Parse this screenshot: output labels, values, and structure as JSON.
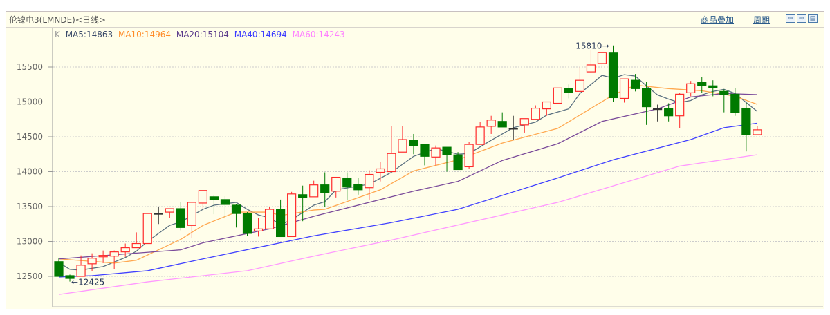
{
  "window": {
    "title": "伦镍电3(LMNDE)<日线>",
    "overlay_link": "商品叠加",
    "period_link": "周期",
    "nav_buttons": [
      {
        "icon": "arrow-left-icon",
        "glyph": "⇦"
      },
      {
        "icon": "arrow-right-icon",
        "glyph": "⇨"
      },
      {
        "icon": "layout-icon",
        "glyph": "▤"
      }
    ]
  },
  "legend": {
    "k_label": "K",
    "items": [
      {
        "label": "MA5:14863",
        "color": "#3a4a6a"
      },
      {
        "label": "MA10:14964",
        "color": "#ff8c28"
      },
      {
        "label": "MA20:15104",
        "color": "#5a3a8a"
      },
      {
        "label": "MA40:14694",
        "color": "#3a3aff"
      },
      {
        "label": "MA60:14243",
        "color": "#ff80ff"
      }
    ]
  },
  "chart_data": {
    "type": "candlestick",
    "title": "",
    "ylim": [
      12150,
      15850
    ],
    "yticks": [
      12500,
      13000,
      13500,
      14000,
      14500,
      15000,
      15500
    ],
    "grid": true,
    "colors": {
      "up": "#ff2a2a",
      "down": "#007a00",
      "flat": "#333333"
    },
    "candles_ohlc": [
      [
        12710,
        12760,
        12500,
        12500
      ],
      [
        12510,
        12525,
        12425,
        12470
      ],
      [
        12500,
        12800,
        12500,
        12660
      ],
      [
        12680,
        12830,
        12570,
        12760
      ],
      [
        12780,
        12870,
        12690,
        12800
      ],
      [
        12790,
        12870,
        12600,
        12850
      ],
      [
        12850,
        12970,
        12780,
        12910
      ],
      [
        12910,
        13130,
        12910,
        12970
      ],
      [
        12970,
        13400,
        12970,
        13400
      ],
      [
        13400,
        13490,
        13250,
        13400
      ],
      [
        13420,
        13470,
        13340,
        13470
      ],
      [
        13470,
        13560,
        13160,
        13200
      ],
      [
        13230,
        13560,
        13050,
        13560
      ],
      [
        13550,
        13730,
        13470,
        13730
      ],
      [
        13640,
        13660,
        13390,
        13600
      ],
      [
        13600,
        13650,
        13330,
        13530
      ],
      [
        13520,
        13530,
        13200,
        13400
      ],
      [
        13400,
        13420,
        13080,
        13115
      ],
      [
        13150,
        13340,
        13070,
        13180
      ],
      [
        13180,
        13490,
        13180,
        13460
      ],
      [
        13460,
        13600,
        13070,
        13070
      ],
      [
        13070,
        13710,
        13070,
        13680
      ],
      [
        13670,
        13800,
        13290,
        13630
      ],
      [
        13640,
        13870,
        13640,
        13810
      ],
      [
        13810,
        13990,
        13500,
        13700
      ],
      [
        13720,
        13920,
        13630,
        13920
      ],
      [
        13910,
        13990,
        13590,
        13780
      ],
      [
        13820,
        13910,
        13670,
        13740
      ],
      [
        13770,
        14020,
        13600,
        13960
      ],
      [
        13990,
        14140,
        13860,
        14040
      ],
      [
        14000,
        14650,
        14000,
        14260
      ],
      [
        14280,
        14650,
        14280,
        14460
      ],
      [
        14450,
        14540,
        14250,
        14370
      ],
      [
        14390,
        14390,
        14090,
        14220
      ],
      [
        14210,
        14375,
        14090,
        14340
      ],
      [
        14350,
        14350,
        14000,
        14240
      ],
      [
        14240,
        14280,
        14030,
        14030
      ],
      [
        14070,
        14430,
        14040,
        14390
      ],
      [
        14390,
        14710,
        14390,
        14640
      ],
      [
        14650,
        14800,
        14540,
        14740
      ],
      [
        14720,
        14850,
        14640,
        14640
      ],
      [
        14620,
        14800,
        14460,
        14620
      ],
      [
        14670,
        14760,
        14560,
        14760
      ],
      [
        14750,
        14950,
        14750,
        14910
      ],
      [
        14900,
        15000,
        14800,
        15000
      ],
      [
        14980,
        15200,
        14980,
        15200
      ],
      [
        15190,
        15250,
        15050,
        15130
      ],
      [
        15150,
        15500,
        15150,
        15310
      ],
      [
        15430,
        15740,
        15420,
        15530
      ],
      [
        15550,
        15710,
        15480,
        15710
      ],
      [
        15710,
        15810,
        15000,
        15060
      ],
      [
        15050,
        15330,
        14990,
        15330
      ],
      [
        15310,
        15400,
        15150,
        15190
      ],
      [
        15190,
        15290,
        14670,
        14930
      ],
      [
        14900,
        14960,
        14720,
        14900
      ],
      [
        14900,
        14980,
        14720,
        14800
      ],
      [
        14800,
        15130,
        14620,
        15110
      ],
      [
        15130,
        15300,
        15080,
        15260
      ],
      [
        15280,
        15360,
        15130,
        15230
      ],
      [
        15230,
        15310,
        15080,
        15200
      ],
      [
        15150,
        15180,
        14850,
        15100
      ],
      [
        15110,
        15200,
        14800,
        14850
      ],
      [
        14910,
        14990,
        14290,
        14530
      ],
      [
        14530,
        14650,
        14530,
        14600
      ]
    ],
    "moving_averages": [
      {
        "name": "MA5",
        "color": "#5a7080",
        "points": [
          [
            0,
            12700
          ],
          [
            1,
            12600
          ],
          [
            2,
            12590
          ],
          [
            4,
            12640
          ],
          [
            6,
            12770
          ],
          [
            7,
            12860
          ],
          [
            8,
            13000
          ],
          [
            10,
            13230
          ],
          [
            11,
            13280
          ],
          [
            13,
            13460
          ],
          [
            14,
            13520
          ],
          [
            16,
            13560
          ],
          [
            17,
            13460
          ],
          [
            18,
            13380
          ],
          [
            19,
            13340
          ],
          [
            20,
            13240
          ],
          [
            21,
            13310
          ],
          [
            23,
            13520
          ],
          [
            24,
            13570
          ],
          [
            25,
            13740
          ],
          [
            28,
            13820
          ],
          [
            30,
            13990
          ],
          [
            32,
            14220
          ],
          [
            34,
            14330
          ],
          [
            36,
            14250
          ],
          [
            37,
            14260
          ],
          [
            39,
            14450
          ],
          [
            41,
            14630
          ],
          [
            43,
            14710
          ],
          [
            44,
            14810
          ],
          [
            46,
            14900
          ],
          [
            47,
            15120
          ],
          [
            49,
            15380
          ],
          [
            50,
            15340
          ],
          [
            51,
            15390
          ],
          [
            52,
            15370
          ],
          [
            53,
            15230
          ],
          [
            54,
            15100
          ],
          [
            55,
            15040
          ],
          [
            56,
            14990
          ],
          [
            57,
            15020
          ],
          [
            58,
            15100
          ],
          [
            59,
            15150
          ],
          [
            60,
            15180
          ],
          [
            61,
            15120
          ],
          [
            62,
            14990
          ],
          [
            63,
            14863
          ]
        ]
      },
      {
        "name": "MA10",
        "color": "#ffa850",
        "points": [
          [
            0,
            12750
          ],
          [
            5,
            12690
          ],
          [
            7,
            12730
          ],
          [
            11,
            13030
          ],
          [
            13,
            13230
          ],
          [
            16,
            13420
          ],
          [
            19,
            13420
          ],
          [
            20,
            13370
          ],
          [
            23,
            13450
          ],
          [
            24,
            13460
          ],
          [
            29,
            13740
          ],
          [
            32,
            14010
          ],
          [
            36,
            14170
          ],
          [
            40,
            14410
          ],
          [
            45,
            14620
          ],
          [
            50,
            15100
          ],
          [
            52,
            15240
          ],
          [
            55,
            15190
          ],
          [
            58,
            15160
          ],
          [
            61,
            15080
          ],
          [
            63,
            14964
          ]
        ]
      },
      {
        "name": "MA20",
        "color": "#7a4a9a",
        "points": [
          [
            0,
            12750
          ],
          [
            11,
            12880
          ],
          [
            13,
            12980
          ],
          [
            19,
            13180
          ],
          [
            23,
            13360
          ],
          [
            32,
            13720
          ],
          [
            36,
            13860
          ],
          [
            40,
            14160
          ],
          [
            45,
            14400
          ],
          [
            49,
            14720
          ],
          [
            54,
            14900
          ],
          [
            57,
            15070
          ],
          [
            60,
            15120
          ],
          [
            63,
            15104
          ]
        ]
      },
      {
        "name": "MA40",
        "color": "#4040ff",
        "points": [
          [
            0,
            12490
          ],
          [
            3,
            12510
          ],
          [
            8,
            12580
          ],
          [
            13,
            12750
          ],
          [
            23,
            13080
          ],
          [
            30,
            13270
          ],
          [
            36,
            13460
          ],
          [
            45,
            13910
          ],
          [
            50,
            14170
          ],
          [
            57,
            14460
          ],
          [
            60,
            14630
          ],
          [
            63,
            14694
          ]
        ]
      },
      {
        "name": "MA60",
        "color": "#ff99ff",
        "points": [
          [
            0,
            12240
          ],
          [
            8,
            12420
          ],
          [
            17,
            12580
          ],
          [
            23,
            12790
          ],
          [
            30,
            13020
          ],
          [
            45,
            13560
          ],
          [
            56,
            14080
          ],
          [
            63,
            14243
          ]
        ]
      }
    ],
    "annotations": {
      "high_label": "15810",
      "low_label": "12425"
    }
  }
}
